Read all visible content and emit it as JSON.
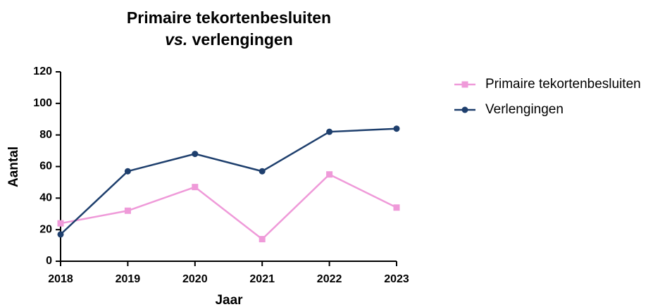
{
  "chart_data": {
    "type": "line",
    "title": [
      "Primaire tekortenbesluiten",
      "vs.",
      "verlengingen"
    ],
    "x_label": "Jaar",
    "y_label": "Aantal",
    "x": [
      2018,
      2019,
      2020,
      2021,
      2022,
      2023
    ],
    "series": [
      {
        "name": "Primaire tekortenbesluiten",
        "color": "#ef9ad9",
        "marker": "square",
        "values": [
          24,
          32,
          47,
          14,
          55,
          34
        ]
      },
      {
        "name": "Verlengingen",
        "color": "#1e3f6d",
        "marker": "circle",
        "values": [
          17,
          57,
          68,
          57,
          82,
          84
        ]
      }
    ],
    "xlim": [
      2018,
      2023
    ],
    "xticks": [
      2018,
      2019,
      2020,
      2021,
      2022,
      2023
    ],
    "ylim": [
      0,
      120
    ],
    "yticks": [
      0,
      20,
      40,
      60,
      80,
      100,
      120
    ],
    "grid": false,
    "legend": "right"
  }
}
